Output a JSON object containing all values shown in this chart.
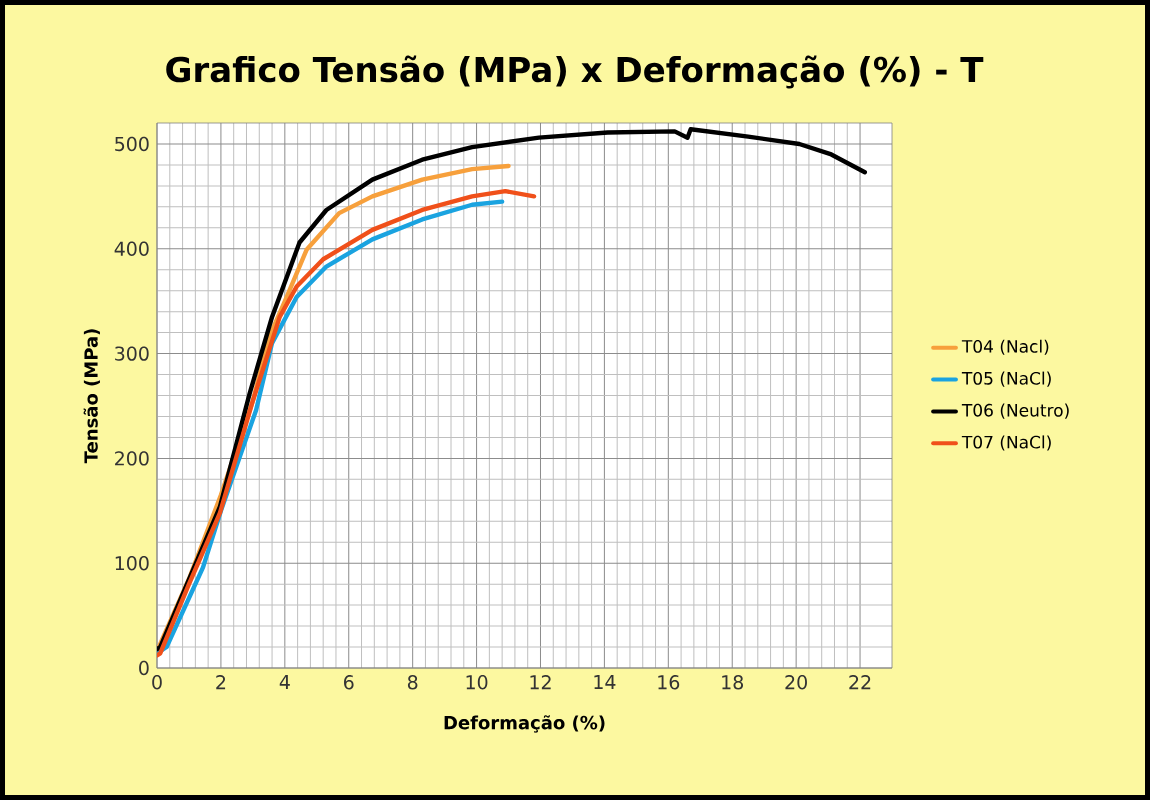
{
  "chart_data": {
    "type": "line",
    "title": "Grafico  Tensão (MPa) x  Deformação (%) - T",
    "xlabel": "Deformação (%)",
    "ylabel": "Tensão (MPa)",
    "xlim": [
      0,
      23
    ],
    "xticks": [
      0,
      2,
      4,
      6,
      8,
      10,
      12,
      14,
      16,
      18,
      20,
      22
    ],
    "ylim": [
      0,
      520
    ],
    "yticks": [
      0,
      100,
      200,
      300,
      400,
      500
    ],
    "grid": true,
    "legend": "right",
    "marker": "none",
    "line_style": "solid",
    "series": [
      {
        "name": "T04 (Nacl)",
        "color": "#f7a03c",
        "x": [
          0,
          1,
          2,
          3,
          3.5,
          4.06,
          4.68,
          5.7,
          6.74,
          8.3,
          9.86,
          11.0
        ],
        "values": [
          16,
          85,
          165,
          255,
          315,
          354,
          399,
          434,
          450,
          466,
          476,
          479
        ]
      },
      {
        "name": "T05 (NaCl)",
        "color": "#1aa3e0",
        "x": [
          0,
          0.3,
          1.44,
          2.0,
          3.1,
          3.6,
          4.37,
          5.3,
          6.74,
          8.3,
          9.86,
          10.8
        ],
        "values": [
          14,
          20,
          96,
          150,
          246,
          310,
          354,
          383,
          409,
          428,
          442,
          445
        ]
      },
      {
        "name": "T06 (Neutro)",
        "color": "#000000",
        "x": [
          0,
          0.1,
          1.97,
          2.9,
          3.6,
          4.46,
          5.3,
          6.74,
          8.3,
          9.86,
          11.95,
          14.1,
          16.2,
          16.6,
          16.7,
          18.5,
          20.1,
          21.1,
          22.15
        ],
        "values": [
          18,
          20,
          154,
          262,
          335,
          406,
          437,
          466,
          485,
          497,
          506,
          511,
          512,
          506,
          514,
          507,
          500,
          490,
          473
        ]
      },
      {
        "name": "T07 (NaCl)",
        "color": "#f0501a",
        "x": [
          0,
          0.1,
          1.0,
          1.97,
          3.0,
          3.84,
          4.37,
          5.2,
          6.74,
          8.3,
          9.86,
          10.9,
          11.8
        ],
        "values": [
          12,
          14,
          80,
          148,
          255,
          335,
          364,
          390,
          418,
          437,
          450,
          455,
          450
        ]
      }
    ]
  }
}
